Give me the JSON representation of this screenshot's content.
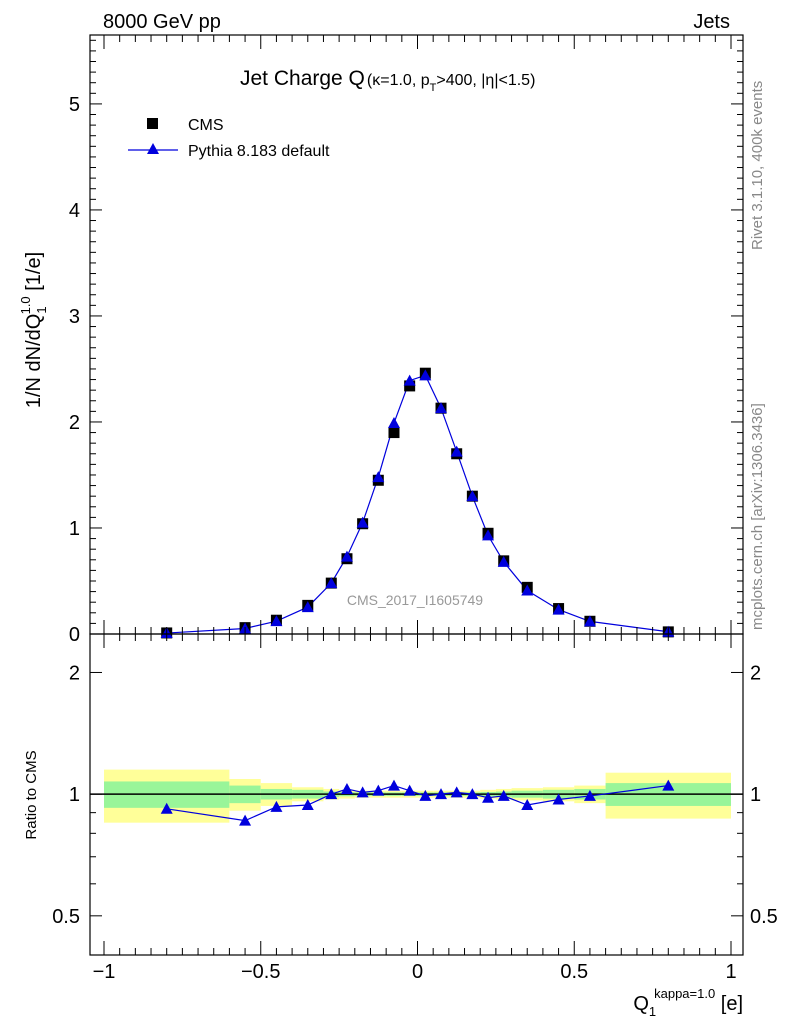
{
  "header": {
    "left": "8000 GeV pp",
    "right": "Jets"
  },
  "side_text": {
    "rivet": "Rivet 3.1.10,  400k events",
    "mcplots": "mcplots.cern.ch [arXiv:1306.3436]"
  },
  "watermark": "CMS_2017_I1605749",
  "colors": {
    "cms": "#000000",
    "pythia": "#0000dd",
    "band_inner": "#99f599",
    "band_outer": "#ffff99"
  },
  "chart_data": [
    {
      "type": "scatter",
      "title": "Jet Charge Q",
      "title_sub": "(κ=1.0, p",
      "title_sub_T": "T",
      "title_sub_rest": ">400, |η|<1.5)",
      "ylabel": "1/N dN/dQ",
      "ylabel_sub": "1",
      "ylabel_sup": "1.0",
      "ylabel_unit": " [1/e]",
      "xlim": [
        -1,
        1
      ],
      "ylim": [
        0,
        5.65
      ],
      "yticks": [
        "0",
        "1",
        "2",
        "3",
        "4",
        "5"
      ],
      "legend": {
        "placement": "top-left",
        "entries": [
          "CMS",
          "Pythia 8.183 default"
        ]
      },
      "x": [
        -0.8,
        -0.55,
        -0.45,
        -0.35,
        -0.275,
        -0.225,
        -0.175,
        -0.125,
        -0.075,
        -0.025,
        0.025,
        0.075,
        0.125,
        0.175,
        0.225,
        0.275,
        0.35,
        0.45,
        0.55,
        0.8
      ],
      "bin_edges": [
        -1,
        -0.6,
        -0.5,
        -0.4,
        -0.3,
        -0.25,
        -0.2,
        -0.15,
        -0.1,
        -0.05,
        0,
        0.05,
        0.1,
        0.15,
        0.2,
        0.25,
        0.3,
        0.4,
        0.5,
        0.6,
        1
      ],
      "series": [
        {
          "name": "CMS",
          "values": [
            0.01,
            0.06,
            0.13,
            0.27,
            0.48,
            0.71,
            1.04,
            1.45,
            1.9,
            2.34,
            2.46,
            2.13,
            1.7,
            1.3,
            0.95,
            0.69,
            0.44,
            0.24,
            0.12,
            0.02
          ]
        },
        {
          "name": "Pythia 8.183 default",
          "values": [
            0.009,
            0.052,
            0.121,
            0.254,
            0.48,
            0.73,
            1.05,
            1.48,
            1.99,
            2.39,
            2.44,
            2.13,
            1.72,
            1.3,
            0.93,
            0.68,
            0.41,
            0.23,
            0.119,
            0.021
          ]
        }
      ]
    },
    {
      "type": "line",
      "ylabel": "Ratio to CMS",
      "xlabel": "Q",
      "xlabel_sub": "1",
      "xlabel_sup": "kappa=1.0",
      "xlabel_unit": " [e]",
      "xlim": [
        -1,
        1
      ],
      "ylim": [
        0.4,
        2.49
      ],
      "yscale": "log",
      "yticks": [
        {
          "v": 0.5,
          "label": "0.5"
        },
        {
          "v": 1,
          "label": "1"
        },
        {
          "v": 2,
          "label": "2"
        }
      ],
      "xticks": [
        {
          "v": -1,
          "label": "−1"
        },
        {
          "v": -0.5,
          "label": "−0.5"
        },
        {
          "v": 0,
          "label": "0"
        },
        {
          "v": 0.5,
          "label": "0.5"
        },
        {
          "v": 1,
          "label": "1"
        }
      ],
      "ratio": [
        0.92,
        0.86,
        0.93,
        0.94,
        1.0,
        1.03,
        1.01,
        1.02,
        1.05,
        1.02,
        0.99,
        1.0,
        1.01,
        1.0,
        0.98,
        0.99,
        0.94,
        0.97,
        0.99,
        1.05
      ],
      "band_inner": [
        0.075,
        0.05,
        0.03,
        0.025,
        0.015,
        0.012,
        0.01,
        0.01,
        0.01,
        0.01,
        0.01,
        0.01,
        0.01,
        0.01,
        0.012,
        0.015,
        0.02,
        0.025,
        0.03,
        0.065
      ],
      "band_outer": [
        0.15,
        0.09,
        0.065,
        0.04,
        0.03,
        0.025,
        0.02,
        0.02,
        0.02,
        0.02,
        0.02,
        0.02,
        0.02,
        0.02,
        0.025,
        0.03,
        0.035,
        0.04,
        0.05,
        0.13
      ]
    }
  ]
}
